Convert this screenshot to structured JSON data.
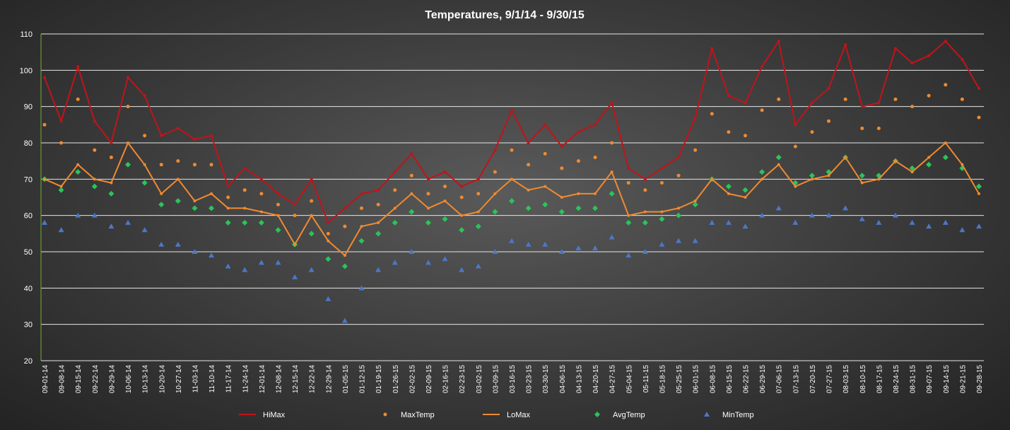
{
  "chart_data": {
    "type": "line",
    "title": "Temperatures, 9/1/14 - 9/30/15",
    "xlabel": "",
    "ylabel": "",
    "ylim": [
      20,
      110
    ],
    "yticks": [
      20,
      30,
      40,
      50,
      60,
      70,
      80,
      90,
      100,
      110
    ],
    "grid": true,
    "legend_position": "bottom",
    "x_start": "2014-09-01",
    "x_end": "2015-09-30",
    "x_tick_labels": [
      "09-01-14",
      "09-08-14",
      "09-15-14",
      "09-22-14",
      "09-29-14",
      "10-06-14",
      "10-13-14",
      "10-20-14",
      "10-27-14",
      "11-03-14",
      "11-10-14",
      "11-17-14",
      "11-24-14",
      "12-01-14",
      "12-08-14",
      "12-15-14",
      "12-22-14",
      "12-29-14",
      "01-05-15",
      "01-12-15",
      "01-19-15",
      "01-26-15",
      "02-02-15",
      "02-09-15",
      "02-16-15",
      "02-23-15",
      "03-02-15",
      "03-09-15",
      "03-16-15",
      "03-23-15",
      "03-30-15",
      "04-06-15",
      "04-13-15",
      "04-20-15",
      "04-27-15",
      "05-04-15",
      "05-11-15",
      "05-18-15",
      "05-25-15",
      "06-01-15",
      "06-08-15",
      "06-15-15",
      "06-22-15",
      "06-29-15",
      "07-06-15",
      "07-13-15",
      "07-20-15",
      "07-27-15",
      "08-03-15",
      "08-10-15",
      "08-17-15",
      "08-24-15",
      "08-31-15",
      "09-07-15",
      "09-14-15",
      "09-21-15",
      "09-28-15"
    ],
    "series": [
      {
        "name": "HiMax",
        "type": "line",
        "color": "#c0141a",
        "x": [
          "09-01-14",
          "09-08-14",
          "09-15-14",
          "09-22-14",
          "09-29-14",
          "10-06-14",
          "10-13-14",
          "10-20-14",
          "10-27-14",
          "11-03-14",
          "11-10-14",
          "11-17-14",
          "11-24-14",
          "12-01-14",
          "12-08-14",
          "12-15-14",
          "12-22-14",
          "12-29-14",
          "01-05-15",
          "01-12-15",
          "01-19-15",
          "01-26-15",
          "02-02-15",
          "02-09-15",
          "02-16-15",
          "02-23-15",
          "03-02-15",
          "03-09-15",
          "03-16-15",
          "03-23-15",
          "03-30-15",
          "04-06-15",
          "04-13-15",
          "04-20-15",
          "04-27-15",
          "05-04-15",
          "05-11-15",
          "05-18-15",
          "05-25-15",
          "06-01-15",
          "06-08-15",
          "06-15-15",
          "06-22-15",
          "06-29-15",
          "07-06-15",
          "07-13-15",
          "07-20-15",
          "07-27-15",
          "08-03-15",
          "08-10-15",
          "08-17-15",
          "08-24-15",
          "08-31-15",
          "09-07-15",
          "09-14-15",
          "09-21-15",
          "09-28-15"
        ],
        "values": [
          98,
          86,
          101,
          86,
          80,
          98,
          93,
          82,
          84,
          81,
          82,
          68,
          73,
          70,
          66,
          63,
          70,
          58,
          62,
          66,
          67,
          72,
          77,
          70,
          72,
          68,
          70,
          78,
          89,
          80,
          85,
          79,
          83,
          85,
          91,
          73,
          70,
          73,
          76,
          87,
          106,
          93,
          91,
          101,
          108,
          85,
          91,
          95,
          107,
          90,
          91,
          106,
          102,
          104,
          108,
          103,
          95
        ]
      },
      {
        "name": "MaxTemp",
        "type": "scatter",
        "color": "#f08a30",
        "x": [
          "09-01-14",
          "09-08-14",
          "09-15-14",
          "09-22-14",
          "09-29-14",
          "10-06-14",
          "10-13-14",
          "10-20-14",
          "10-27-14",
          "11-03-14",
          "11-10-14",
          "11-17-14",
          "11-24-14",
          "12-01-14",
          "12-08-14",
          "12-15-14",
          "12-22-14",
          "12-29-14",
          "01-05-15",
          "01-12-15",
          "01-19-15",
          "01-26-15",
          "02-02-15",
          "02-09-15",
          "02-16-15",
          "02-23-15",
          "03-02-15",
          "03-09-15",
          "03-16-15",
          "03-23-15",
          "03-30-15",
          "04-06-15",
          "04-13-15",
          "04-20-15",
          "04-27-15",
          "05-04-15",
          "05-11-15",
          "05-18-15",
          "05-25-15",
          "06-01-15",
          "06-08-15",
          "06-15-15",
          "06-22-15",
          "06-29-15",
          "07-06-15",
          "07-13-15",
          "07-20-15",
          "07-27-15",
          "08-03-15",
          "08-10-15",
          "08-17-15",
          "08-24-15",
          "08-31-15",
          "09-07-15",
          "09-14-15",
          "09-21-15",
          "09-28-15"
        ],
        "values": [
          85,
          80,
          92,
          78,
          76,
          90,
          82,
          74,
          75,
          74,
          74,
          65,
          67,
          66,
          63,
          60,
          64,
          55,
          57,
          62,
          63,
          67,
          71,
          66,
          68,
          65,
          66,
          72,
          78,
          74,
          77,
          73,
          75,
          76,
          80,
          69,
          67,
          69,
          71,
          78,
          88,
          83,
          82,
          89,
          92,
          79,
          83,
          86,
          92,
          84,
          84,
          92,
          90,
          93,
          96,
          92,
          87
        ]
      },
      {
        "name": "LoMax",
        "type": "line",
        "color": "#f08a30",
        "x": [
          "09-01-14",
          "09-08-14",
          "09-15-14",
          "09-22-14",
          "09-29-14",
          "10-06-14",
          "10-13-14",
          "10-20-14",
          "10-27-14",
          "11-03-14",
          "11-10-14",
          "11-17-14",
          "11-24-14",
          "12-01-14",
          "12-08-14",
          "12-15-14",
          "12-22-14",
          "12-29-14",
          "01-05-15",
          "01-12-15",
          "01-19-15",
          "01-26-15",
          "02-02-15",
          "02-09-15",
          "02-16-15",
          "02-23-15",
          "03-02-15",
          "03-09-15",
          "03-16-15",
          "03-23-15",
          "03-30-15",
          "04-06-15",
          "04-13-15",
          "04-20-15",
          "04-27-15",
          "05-04-15",
          "05-11-15",
          "05-18-15",
          "05-25-15",
          "06-01-15",
          "06-08-15",
          "06-15-15",
          "06-22-15",
          "06-29-15",
          "07-06-15",
          "07-13-15",
          "07-20-15",
          "07-27-15",
          "08-03-15",
          "08-10-15",
          "08-17-15",
          "08-24-15",
          "08-31-15",
          "09-07-15",
          "09-14-15",
          "09-21-15",
          "09-28-15"
        ],
        "values": [
          70,
          68,
          74,
          70,
          69,
          80,
          74,
          66,
          70,
          64,
          66,
          62,
          62,
          61,
          60,
          52,
          60,
          53,
          49,
          57,
          58,
          62,
          66,
          62,
          64,
          60,
          61,
          66,
          70,
          67,
          68,
          65,
          66,
          66,
          72,
          60,
          61,
          61,
          62,
          64,
          70,
          66,
          65,
          70,
          74,
          68,
          70,
          71,
          76,
          69,
          70,
          75,
          72,
          76,
          80,
          74,
          66
        ]
      },
      {
        "name": "AvgTemp",
        "type": "scatter",
        "color": "#2bc45a",
        "x": [
          "09-01-14",
          "09-08-14",
          "09-15-14",
          "09-22-14",
          "09-29-14",
          "10-06-14",
          "10-13-14",
          "10-20-14",
          "10-27-14",
          "11-03-14",
          "11-10-14",
          "11-17-14",
          "11-24-14",
          "12-01-14",
          "12-08-14",
          "12-15-14",
          "12-22-14",
          "12-29-14",
          "01-05-15",
          "01-12-15",
          "01-19-15",
          "01-26-15",
          "02-02-15",
          "02-09-15",
          "02-16-15",
          "02-23-15",
          "03-02-15",
          "03-09-15",
          "03-16-15",
          "03-23-15",
          "03-30-15",
          "04-06-15",
          "04-13-15",
          "04-20-15",
          "04-27-15",
          "05-04-15",
          "05-11-15",
          "05-18-15",
          "05-25-15",
          "06-01-15",
          "06-08-15",
          "06-15-15",
          "06-22-15",
          "06-29-15",
          "07-06-15",
          "07-13-15",
          "07-20-15",
          "07-27-15",
          "08-03-15",
          "08-10-15",
          "08-17-15",
          "08-24-15",
          "08-31-15",
          "09-07-15",
          "09-14-15",
          "09-21-15",
          "09-28-15"
        ],
        "values": [
          70,
          67,
          72,
          68,
          66,
          74,
          69,
          63,
          64,
          62,
          62,
          58,
          58,
          58,
          56,
          52,
          55,
          48,
          46,
          53,
          55,
          58,
          61,
          58,
          59,
          56,
          57,
          61,
          64,
          62,
          63,
          61,
          62,
          62,
          66,
          58,
          58,
          59,
          60,
          63,
          70,
          68,
          67,
          72,
          76,
          69,
          71,
          72,
          76,
          71,
          71,
          75,
          73,
          74,
          76,
          73,
          68
        ]
      },
      {
        "name": "MinTemp",
        "type": "scatter",
        "color": "#4a78c8",
        "x": [
          "09-01-14",
          "09-08-14",
          "09-15-14",
          "09-22-14",
          "09-29-14",
          "10-06-14",
          "10-13-14",
          "10-20-14",
          "10-27-14",
          "11-03-14",
          "11-10-14",
          "11-17-14",
          "11-24-14",
          "12-01-14",
          "12-08-14",
          "12-15-14",
          "12-22-14",
          "12-29-14",
          "01-05-15",
          "01-12-15",
          "01-19-15",
          "01-26-15",
          "02-02-15",
          "02-09-15",
          "02-16-15",
          "02-23-15",
          "03-02-15",
          "03-09-15",
          "03-16-15",
          "03-23-15",
          "03-30-15",
          "04-06-15",
          "04-13-15",
          "04-20-15",
          "04-27-15",
          "05-04-15",
          "05-11-15",
          "05-18-15",
          "05-25-15",
          "06-01-15",
          "06-08-15",
          "06-15-15",
          "06-22-15",
          "06-29-15",
          "07-06-15",
          "07-13-15",
          "07-20-15",
          "07-27-15",
          "08-03-15",
          "08-10-15",
          "08-17-15",
          "08-24-15",
          "08-31-15",
          "09-07-15",
          "09-14-15",
          "09-21-15",
          "09-28-15"
        ],
        "values": [
          58,
          56,
          60,
          60,
          57,
          58,
          56,
          52,
          52,
          50,
          49,
          46,
          45,
          47,
          47,
          43,
          45,
          37,
          31,
          40,
          45,
          47,
          50,
          47,
          48,
          45,
          46,
          50,
          53,
          52,
          52,
          50,
          51,
          51,
          54,
          49,
          50,
          52,
          53,
          53,
          58,
          58,
          57,
          60,
          62,
          58,
          60,
          60,
          62,
          59,
          58,
          60,
          58,
          57,
          58,
          56,
          57
        ]
      }
    ]
  }
}
